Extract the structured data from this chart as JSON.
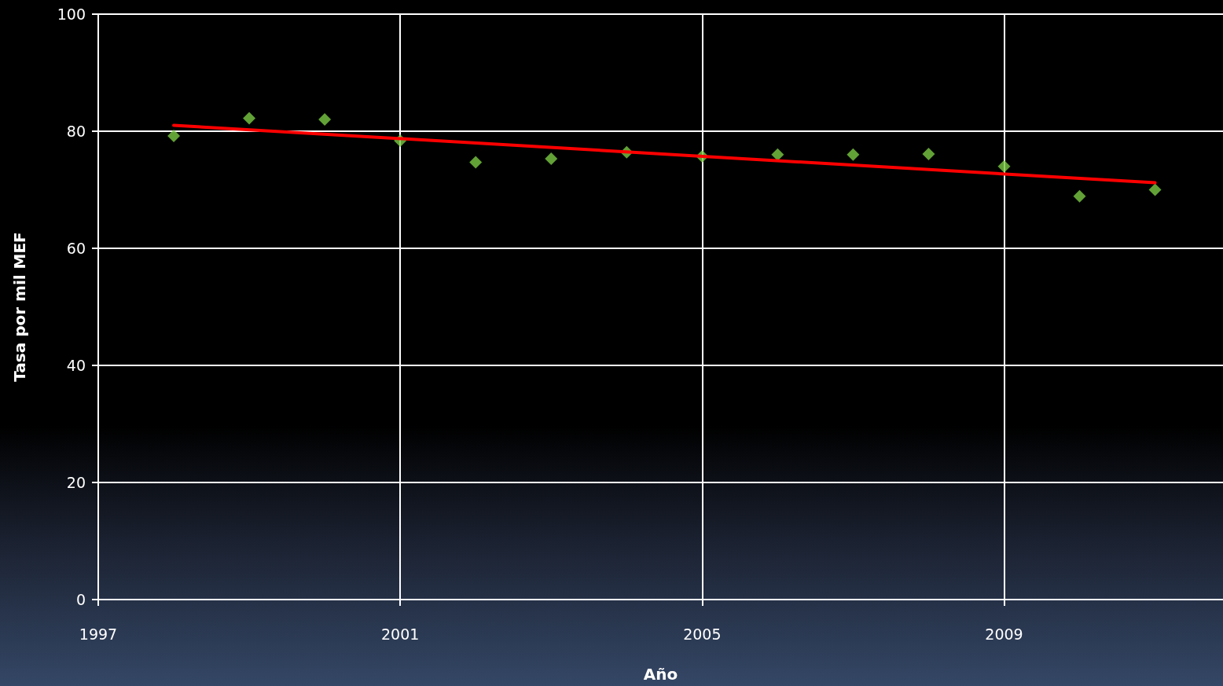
{
  "chart_data": {
    "type": "scatter",
    "xlabel": "Año",
    "ylabel": "Tasa por mil MEF",
    "xlim": [
      1997,
      2011.9
    ],
    "xticks": [
      1997,
      2001,
      2005,
      2009
    ],
    "ylim": [
      0,
      100
    ],
    "yticks": [
      0,
      20,
      40,
      60,
      80,
      100
    ],
    "grid": true,
    "marker": "diamond",
    "x": [
      1998,
      1999,
      2000,
      2001,
      2002,
      2003,
      2004,
      2005,
      2006,
      2007,
      2008,
      2009,
      2010,
      2011
    ],
    "series": [
      {
        "type": "scatter",
        "color": "#7ac943",
        "values": [
          79.2,
          82.2,
          82.0,
          78.4,
          74.7,
          75.3,
          76.4,
          75.7,
          76.0,
          76.0,
          76.1,
          74.0,
          68.9,
          70.0
        ]
      },
      {
        "type": "line",
        "color": "#ff0000",
        "marker": "none",
        "x": [
          1998,
          2011
        ],
        "values": [
          81.0,
          71.2
        ]
      }
    ]
  }
}
